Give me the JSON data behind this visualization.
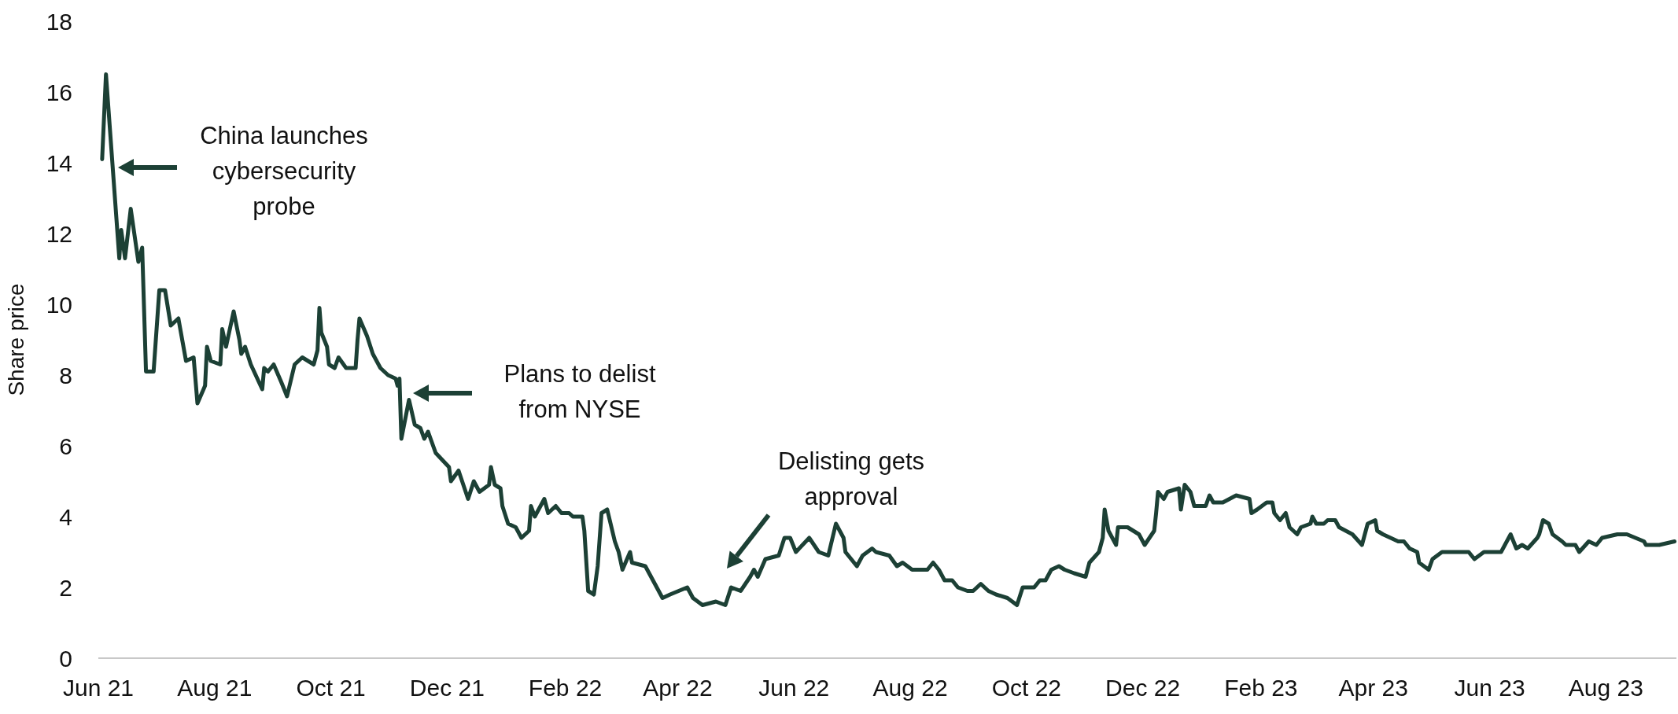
{
  "chart_data": {
    "type": "line",
    "ylabel": "Share price",
    "xlim": [
      "2021-06-01",
      "2023-09-07"
    ],
    "ylim": [
      0,
      18
    ],
    "yticks": [
      0,
      2,
      4,
      6,
      8,
      10,
      12,
      14,
      16,
      18
    ],
    "xticks": [
      {
        "value": "2021-06-01",
        "label": "Jun 21"
      },
      {
        "value": "2021-08-01",
        "label": "Aug 21"
      },
      {
        "value": "2021-10-01",
        "label": "Oct 21"
      },
      {
        "value": "2021-12-01",
        "label": "Dec 21"
      },
      {
        "value": "2022-02-01",
        "label": "Feb 22"
      },
      {
        "value": "2022-04-01",
        "label": "Apr 22"
      },
      {
        "value": "2022-06-01",
        "label": "Jun 22"
      },
      {
        "value": "2022-08-01",
        "label": "Aug 22"
      },
      {
        "value": "2022-10-01",
        "label": "Oct 22"
      },
      {
        "value": "2022-12-01",
        "label": "Dec 22"
      },
      {
        "value": "2023-02-01",
        "label": "Feb 23"
      },
      {
        "value": "2023-04-01",
        "label": "Apr 23"
      },
      {
        "value": "2023-06-01",
        "label": "Jun 23"
      },
      {
        "value": "2023-08-01",
        "label": "Aug 23"
      }
    ],
    "marker": "none",
    "line_style": "solid",
    "annotations": [
      "China launches\ncybersecurity\nprobe",
      "Plans to delist\nfrom NYSE",
      "Delisting gets\napproval"
    ],
    "series": [
      {
        "color": "#1c4035",
        "x": [
          "2021-06-03",
          "2021-06-05",
          "2021-06-12",
          "2021-06-13",
          "2021-06-15",
          "2021-06-18",
          "2021-06-22",
          "2021-06-24",
          "2021-06-26",
          "2021-06-30",
          "2021-07-03",
          "2021-07-06",
          "2021-07-09",
          "2021-07-13",
          "2021-07-17",
          "2021-07-21",
          "2021-07-23",
          "2021-07-27",
          "2021-07-28",
          "2021-07-30",
          "2021-08-04",
          "2021-08-05",
          "2021-08-07",
          "2021-08-11",
          "2021-08-14",
          "2021-08-15",
          "2021-08-17",
          "2021-08-20",
          "2021-08-26",
          "2021-08-27",
          "2021-08-29",
          "2021-09-01",
          "2021-09-05",
          "2021-09-08",
          "2021-09-12",
          "2021-09-16",
          "2021-09-22",
          "2021-09-24",
          "2021-09-25",
          "2021-09-26",
          "2021-09-29",
          "2021-09-30",
          "2021-10-03",
          "2021-10-05",
          "2021-10-09",
          "2021-10-14",
          "2021-10-15",
          "2021-10-16",
          "2021-10-20",
          "2021-10-23",
          "2021-10-27",
          "2021-10-31",
          "2021-11-04",
          "2021-11-05",
          "2021-11-06",
          "2021-11-07",
          "2021-11-11",
          "2021-11-14",
          "2021-11-17",
          "2021-11-19",
          "2021-11-21",
          "2021-11-25",
          "2021-12-02",
          "2021-12-03",
          "2021-12-07",
          "2021-12-12",
          "2021-12-15",
          "2021-12-18",
          "2021-12-23",
          "2021-12-24",
          "2021-12-26",
          "2021-12-29",
          "2021-12-30",
          "2022-01-02",
          "2022-01-06",
          "2022-01-09",
          "2022-01-13",
          "2022-01-14",
          "2022-01-16",
          "2022-01-21",
          "2022-01-23",
          "2022-01-27",
          "2022-01-30",
          "2022-02-03",
          "2022-02-05",
          "2022-02-10",
          "2022-02-11",
          "2022-02-13",
          "2022-02-16",
          "2022-02-18",
          "2022-02-20",
          "2022-02-23",
          "2022-02-27",
          "2022-03-01",
          "2022-03-03",
          "2022-03-07",
          "2022-03-08",
          "2022-03-15",
          "2022-03-21",
          "2022-03-24",
          "2022-03-28",
          "2022-04-06",
          "2022-04-09",
          "2022-04-14",
          "2022-04-21",
          "2022-04-26",
          "2022-04-29",
          "2022-05-04",
          "2022-05-09",
          "2022-05-11",
          "2022-05-13",
          "2022-05-17",
          "2022-05-24",
          "2022-05-27",
          "2022-05-30",
          "2022-06-02",
          "2022-06-09",
          "2022-06-14",
          "2022-06-19",
          "2022-06-23",
          "2022-06-27",
          "2022-06-28",
          "2022-07-04",
          "2022-07-07",
          "2022-07-12",
          "2022-07-14",
          "2022-07-21",
          "2022-07-25",
          "2022-07-28",
          "2022-08-02",
          "2022-08-10",
          "2022-08-13",
          "2022-08-16",
          "2022-08-19",
          "2022-08-23",
          "2022-08-26",
          "2022-08-31",
          "2022-09-03",
          "2022-09-07",
          "2022-09-11",
          "2022-09-15",
          "2022-09-21",
          "2022-09-26",
          "2022-09-29",
          "2022-10-05",
          "2022-10-08",
          "2022-10-11",
          "2022-10-14",
          "2022-10-18",
          "2022-10-21",
          "2022-10-26",
          "2022-11-01",
          "2022-11-03",
          "2022-11-08",
          "2022-11-10",
          "2022-11-11",
          "2022-11-13",
          "2022-11-15",
          "2022-11-17",
          "2022-11-18",
          "2022-11-23",
          "2022-11-29",
          "2022-12-02",
          "2022-12-07",
          "2022-12-08",
          "2022-12-09",
          "2022-12-12",
          "2022-12-14",
          "2022-12-20",
          "2022-12-21",
          "2022-12-23",
          "2022-12-26",
          "2022-12-28",
          "2023-01-03",
          "2023-01-05",
          "2023-01-07",
          "2023-01-12",
          "2023-01-19",
          "2023-01-26",
          "2023-01-27",
          "2023-01-30",
          "2023-02-04",
          "2023-02-07",
          "2023-02-08",
          "2023-02-11",
          "2023-02-14",
          "2023-02-16",
          "2023-02-20",
          "2023-02-22",
          "2023-02-27",
          "2023-02-28",
          "2023-03-02",
          "2023-03-06",
          "2023-03-08",
          "2023-03-12",
          "2023-03-14",
          "2023-03-21",
          "2023-03-26",
          "2023-03-29",
          "2023-04-02",
          "2023-04-03",
          "2023-04-06",
          "2023-04-10",
          "2023-04-14",
          "2023-04-17",
          "2023-04-20",
          "2023-04-24",
          "2023-04-25",
          "2023-04-30",
          "2023-05-02",
          "2023-05-07",
          "2023-05-11",
          "2023-05-16",
          "2023-05-21",
          "2023-05-24",
          "2023-05-29",
          "2023-06-07",
          "2023-06-12",
          "2023-06-15",
          "2023-06-18",
          "2023-06-21",
          "2023-06-26",
          "2023-06-27",
          "2023-06-29",
          "2023-07-02",
          "2023-07-04",
          "2023-07-09",
          "2023-07-11",
          "2023-07-16",
          "2023-07-18",
          "2023-07-23",
          "2023-07-27",
          "2023-07-30",
          "2023-08-07",
          "2023-08-12",
          "2023-08-21",
          "2023-08-22",
          "2023-08-29",
          "2023-09-06"
        ],
        "values": [
          14.1,
          16.5,
          11.3,
          12.1,
          11.3,
          12.7,
          11.2,
          11.6,
          8.1,
          8.1,
          10.4,
          10.4,
          9.4,
          9.6,
          8.4,
          8.5,
          7.2,
          7.7,
          8.8,
          8.4,
          8.3,
          9.3,
          8.8,
          9.8,
          9.0,
          8.6,
          8.8,
          8.3,
          7.6,
          8.2,
          8.1,
          8.3,
          7.8,
          7.4,
          8.3,
          8.5,
          8.3,
          8.7,
          9.9,
          9.2,
          8.8,
          8.3,
          8.2,
          8.5,
          8.2,
          8.2,
          9.0,
          9.6,
          9.1,
          8.6,
          8.2,
          8.0,
          7.9,
          7.7,
          7.9,
          6.2,
          7.3,
          6.6,
          6.5,
          6.2,
          6.4,
          5.8,
          5.4,
          5.0,
          5.3,
          4.5,
          5.0,
          4.7,
          4.9,
          5.4,
          4.9,
          4.8,
          4.3,
          3.8,
          3.7,
          3.4,
          3.6,
          4.3,
          4.0,
          4.5,
          4.1,
          4.3,
          4.1,
          4.1,
          4.0,
          4.0,
          3.6,
          1.9,
          1.8,
          2.6,
          4.1,
          4.2,
          3.3,
          3.0,
          2.5,
          3.0,
          2.7,
          2.6,
          2.0,
          1.7,
          1.8,
          2.0,
          1.7,
          1.5,
          1.6,
          1.5,
          2.0,
          1.9,
          2.3,
          2.5,
          2.3,
          2.8,
          2.9,
          3.4,
          3.4,
          3.0,
          3.4,
          3.0,
          2.9,
          3.8,
          3.4,
          3.0,
          2.6,
          2.9,
          3.1,
          3.0,
          2.9,
          2.6,
          2.7,
          2.5,
          2.5,
          2.7,
          2.5,
          2.2,
          2.2,
          2.0,
          1.9,
          1.9,
          2.1,
          1.9,
          1.8,
          1.7,
          1.5,
          2.0,
          2.0,
          2.2,
          2.2,
          2.5,
          2.6,
          2.5,
          2.4,
          2.3,
          2.7,
          3.0,
          3.4,
          4.2,
          3.6,
          3.4,
          3.2,
          3.7,
          3.7,
          3.5,
          3.2,
          3.6,
          4.1,
          4.7,
          4.5,
          4.7,
          4.8,
          4.2,
          4.9,
          4.7,
          4.3,
          4.3,
          4.6,
          4.4,
          4.4,
          4.6,
          4.5,
          4.1,
          4.2,
          4.4,
          4.4,
          4.1,
          3.9,
          4.1,
          3.7,
          3.5,
          3.7,
          3.8,
          4.0,
          3.8,
          3.8,
          3.9,
          3.9,
          3.7,
          3.5,
          3.2,
          3.8,
          3.9,
          3.6,
          3.5,
          3.4,
          3.3,
          3.3,
          3.1,
          3.0,
          2.7,
          2.5,
          2.8,
          3.0,
          3.0,
          3.0,
          3.0,
          2.8,
          3.0,
          3.0,
          3.5,
          3.1,
          3.2,
          3.1,
          3.4,
          3.5,
          3.9,
          3.8,
          3.5,
          3.3,
          3.2,
          3.2,
          3.0,
          3.3,
          3.2,
          3.4,
          3.5,
          3.5,
          3.3,
          3.2,
          3.2,
          3.3
        ]
      }
    ]
  }
}
